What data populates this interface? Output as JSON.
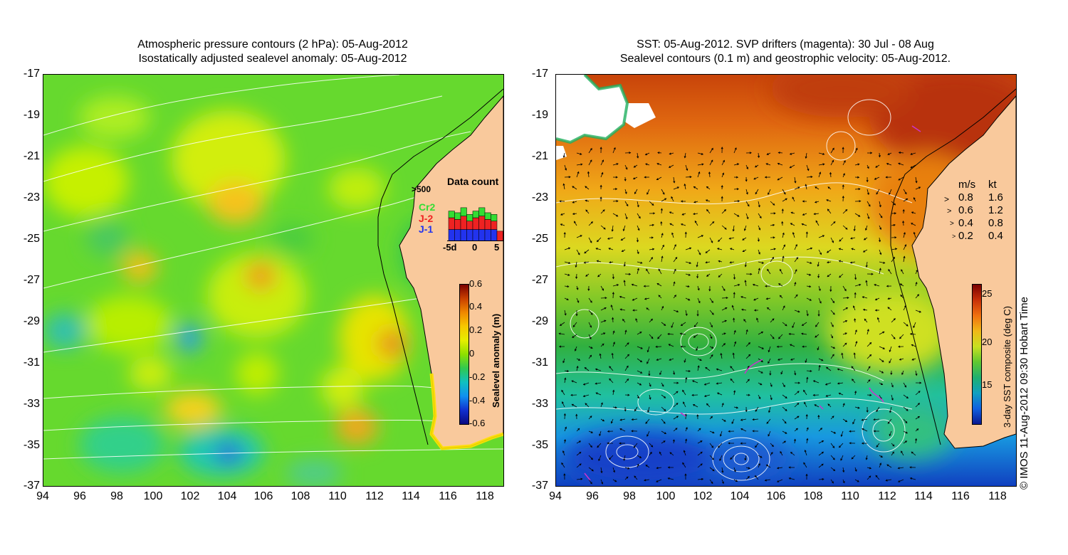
{
  "left_panel": {
    "title_line1": "Atmospheric pressure contours (2 hPa): 05-Aug-2012",
    "title_line2": "Isostatically adjusted sealevel anomaly: 05-Aug-2012",
    "y_ticks": [
      "-17",
      "-19",
      "-21",
      "-23",
      "-25",
      "-27",
      "-29",
      "-31",
      "-33",
      "-35",
      "-37"
    ],
    "x_ticks": [
      "94",
      "96",
      "98",
      "100",
      "102",
      "104",
      "106",
      "108",
      "110",
      "112",
      "114",
      "116",
      "118"
    ],
    "colorbar_label": "Sealevel anomaly (m)",
    "colorbar_ticks": [
      "0.6",
      "0.4",
      "0.2",
      "0",
      "-0.2",
      "-0.4",
      "-0.6"
    ],
    "data_count": {
      "title": "Data count",
      "max_label": ">500",
      "legend": [
        "Cr2",
        "J-2",
        "J-1"
      ],
      "x_labels": [
        "-5d",
        "0",
        "5"
      ],
      "legend_colors": {
        "Cr2": "#33dd33",
        "J-2": "#ee2222",
        "J-1": "#2233ee"
      },
      "bars": [
        {
          "day": -5,
          "J1": 0.35,
          "J2": 0.35,
          "Cr2": 0.2
        },
        {
          "day": -4,
          "J1": 0.35,
          "J2": 0.3,
          "Cr2": 0.2
        },
        {
          "day": -3,
          "J1": 0.35,
          "J2": 0.4,
          "Cr2": 0.25
        },
        {
          "day": -2,
          "J1": 0.35,
          "J2": 0.25,
          "Cr2": 0.2
        },
        {
          "day": -1,
          "J1": 0.35,
          "J2": 0.35,
          "Cr2": 0.2
        },
        {
          "day": 0,
          "J1": 0.35,
          "J2": 0.4,
          "Cr2": 0.25
        },
        {
          "day": 1,
          "J1": 0.35,
          "J2": 0.3,
          "Cr2": 0.2
        },
        {
          "day": 2,
          "J1": 0.35,
          "J2": 0.25,
          "Cr2": 0.2
        },
        {
          "day": 3,
          "J1": 0,
          "J2": 0.3,
          "Cr2": 0
        }
      ]
    }
  },
  "right_panel": {
    "title_line1": "SST: 05-Aug-2012. SVP drifters (magenta): 30 Jul - 08 Aug",
    "title_line2": "Sealevel contours (0.1 m) and geostrophic velocity: 05-Aug-2012.",
    "y_ticks": [
      "-17",
      "-19",
      "-21",
      "-23",
      "-25",
      "-27",
      "-29",
      "-31",
      "-33",
      "-35",
      "-37"
    ],
    "x_ticks": [
      "94",
      "96",
      "98",
      "100",
      "102",
      "104",
      "106",
      "108",
      "110",
      "112",
      "114",
      "116",
      "118"
    ],
    "velocity_legend": {
      "header_ms": "m/s",
      "header_kt": "kt",
      "rows": [
        {
          "ms": "0.8",
          "kt": "1.6"
        },
        {
          "ms": "0.6",
          "kt": "1.2"
        },
        {
          "ms": "0.4",
          "kt": "0.8"
        },
        {
          "ms": "0.2",
          "kt": "0.4"
        }
      ]
    },
    "colorbar_label": "3-day SST composite (deg C)",
    "colorbar_ticks": [
      "25",
      "20",
      "15"
    ]
  },
  "copyright": "© IMOS 11-Aug-2012 09:30 Hobart Time",
  "colors": {
    "land": "#f9c99c",
    "coast": "#000000",
    "contour": "#ffffff",
    "drifter": "#cc33cc"
  }
}
